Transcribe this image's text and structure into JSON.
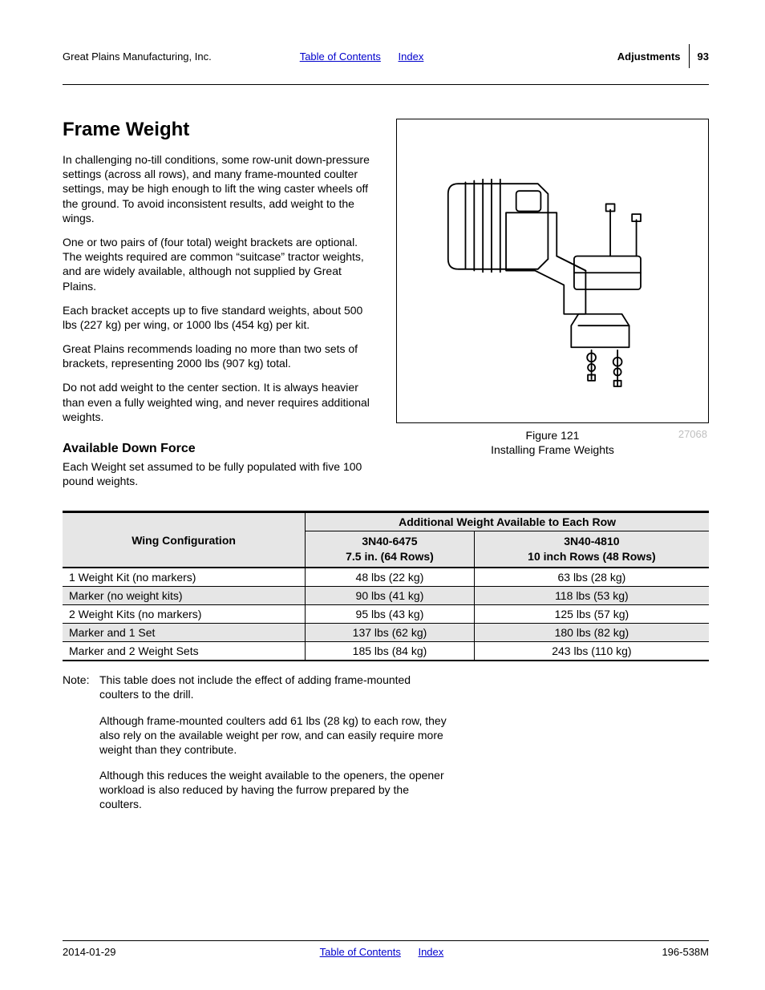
{
  "header": {
    "company": "Great Plains Manufacturing, Inc.",
    "toc_link": "Table of Contents",
    "index_link": "Index",
    "section": "Adjustments",
    "page_number": "93"
  },
  "heading": "Frame Weight",
  "paragraphs": {
    "p1": "In challenging no-till conditions, some row-unit down-pressure settings (across all rows), and many frame-mounted coulter settings, may be high enough to lift the wing caster wheels off the ground. To avoid inconsistent results, add weight to the wings.",
    "p2": "One or two pairs of (four total) weight brackets are optional. The weights required are common “suitcase” tractor weights, and are widely available, although not supplied by Great Plains.",
    "p3": "Each bracket accepts up to five standard weights, about 500 lbs (227 kg) per wing, or 1000 lbs (454 kg) per kit.",
    "p4": "Great Plains recommends loading no more than two sets of brackets, representing 2000 lbs (907 kg) total.",
    "p5": "Do not add weight to the center section. It is always heavier than even a fully weighted wing, and never requires additional weights."
  },
  "subheading": "Available Down Force",
  "sub_para": "Each Weight set assumed to be fully populated with five 100 pound weights.",
  "figure": {
    "label": "Figure 121",
    "caption": "Installing Frame Weights",
    "ref": "27068"
  },
  "table": {
    "superheader": "Additional Weight Available to Each Row",
    "col_wing": "Wing Configuration",
    "col1_line1": "3N40-6475",
    "col1_line2": "7.5 in. (64 Rows)",
    "col2_line1": "3N40-4810",
    "col2_line2": "10 inch Rows (48 Rows)",
    "rows": [
      {
        "label": "1 Weight Kit (no markers)",
        "c1": "48 lbs (22 kg)",
        "c2": "63 lbs (28 kg)",
        "shade": false
      },
      {
        "label": "Marker (no weight kits)",
        "c1": "90 lbs (41 kg)",
        "c2": "118 lbs (53 kg)",
        "shade": true
      },
      {
        "label": "2 Weight Kits (no markers)",
        "c1": "95 lbs (43 kg)",
        "c2": "125 lbs (57 kg)",
        "shade": false
      },
      {
        "label": "Marker and 1 Set",
        "c1": "137 lbs (62 kg)",
        "c2": "180 lbs (82 kg)",
        "shade": true
      },
      {
        "label": "Marker and 2 Weight Sets",
        "c1": "185 lbs (84 kg)",
        "c2": "243 lbs (110 kg)",
        "shade": false
      }
    ],
    "shade_color": "#e6e6e6"
  },
  "note": {
    "label": "Note:",
    "p1": "This table does not include the effect of adding frame-mounted coulters to the drill.",
    "p2": "Although frame-mounted coulters add 61 lbs (28 kg) to each row, they also rely on the available weight per row, and can easily require more weight than they contribute.",
    "p3": "Although this reduces the weight available to the openers, the opener workload is also reduced by having the furrow prepared by the coulters."
  },
  "footer": {
    "date": "2014-01-29",
    "toc_link": "Table of Contents",
    "index_link": "Index",
    "doc_id": "196-538M"
  },
  "link_color": "#0000cc"
}
